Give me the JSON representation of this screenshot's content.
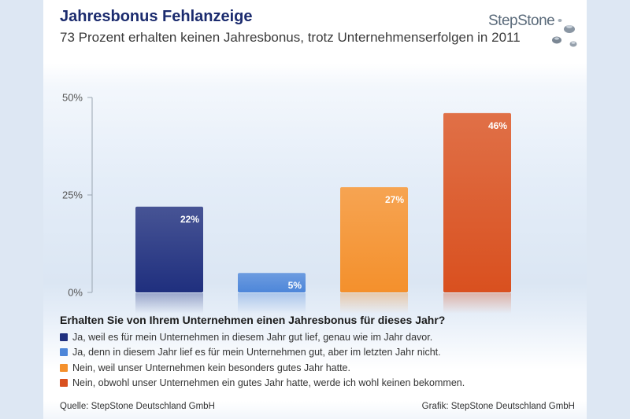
{
  "header": {
    "title": "Jahresbonus Fehlanzeige",
    "subtitle": "73 Prozent erhalten keinen Jahresbonus, trotz Unternehmenserfolgen in 2011",
    "logo_text": "StepStone"
  },
  "chart_data": {
    "type": "bar",
    "categories": [
      "Ja, weil es für mein Unternehmen in diesem Jahr gut lief, genau wie im Jahr davor.",
      "Ja, denn in diesem Jahr lief es für mein Unternehmen gut, aber im letzten Jahr nicht.",
      "Nein, weil unser Unternehmen kein besonders gutes Jahr hatte.",
      "Nein, obwohl unser Unternehmen ein gutes Jahr hatte, werde ich wohl keinen bekommen."
    ],
    "values": [
      22,
      5,
      27,
      46
    ],
    "value_labels": [
      "22%",
      "5%",
      "27%",
      "46%"
    ],
    "colors": [
      "#1f2f7e",
      "#4d86d9",
      "#f4902c",
      "#d9501f"
    ],
    "ylim": [
      0,
      50
    ],
    "yticks": [
      0,
      25,
      50
    ],
    "ytick_labels": [
      "0%",
      "25%",
      "50%"
    ],
    "title": "Erhalten Sie von Ihrem Unternehmen einen Jahresbonus für dieses Jahr?"
  },
  "footer": {
    "source": "Quelle: StepStone Deutschland GmbH",
    "graphic": "Grafik: StepStone Deutschland GmbH"
  }
}
